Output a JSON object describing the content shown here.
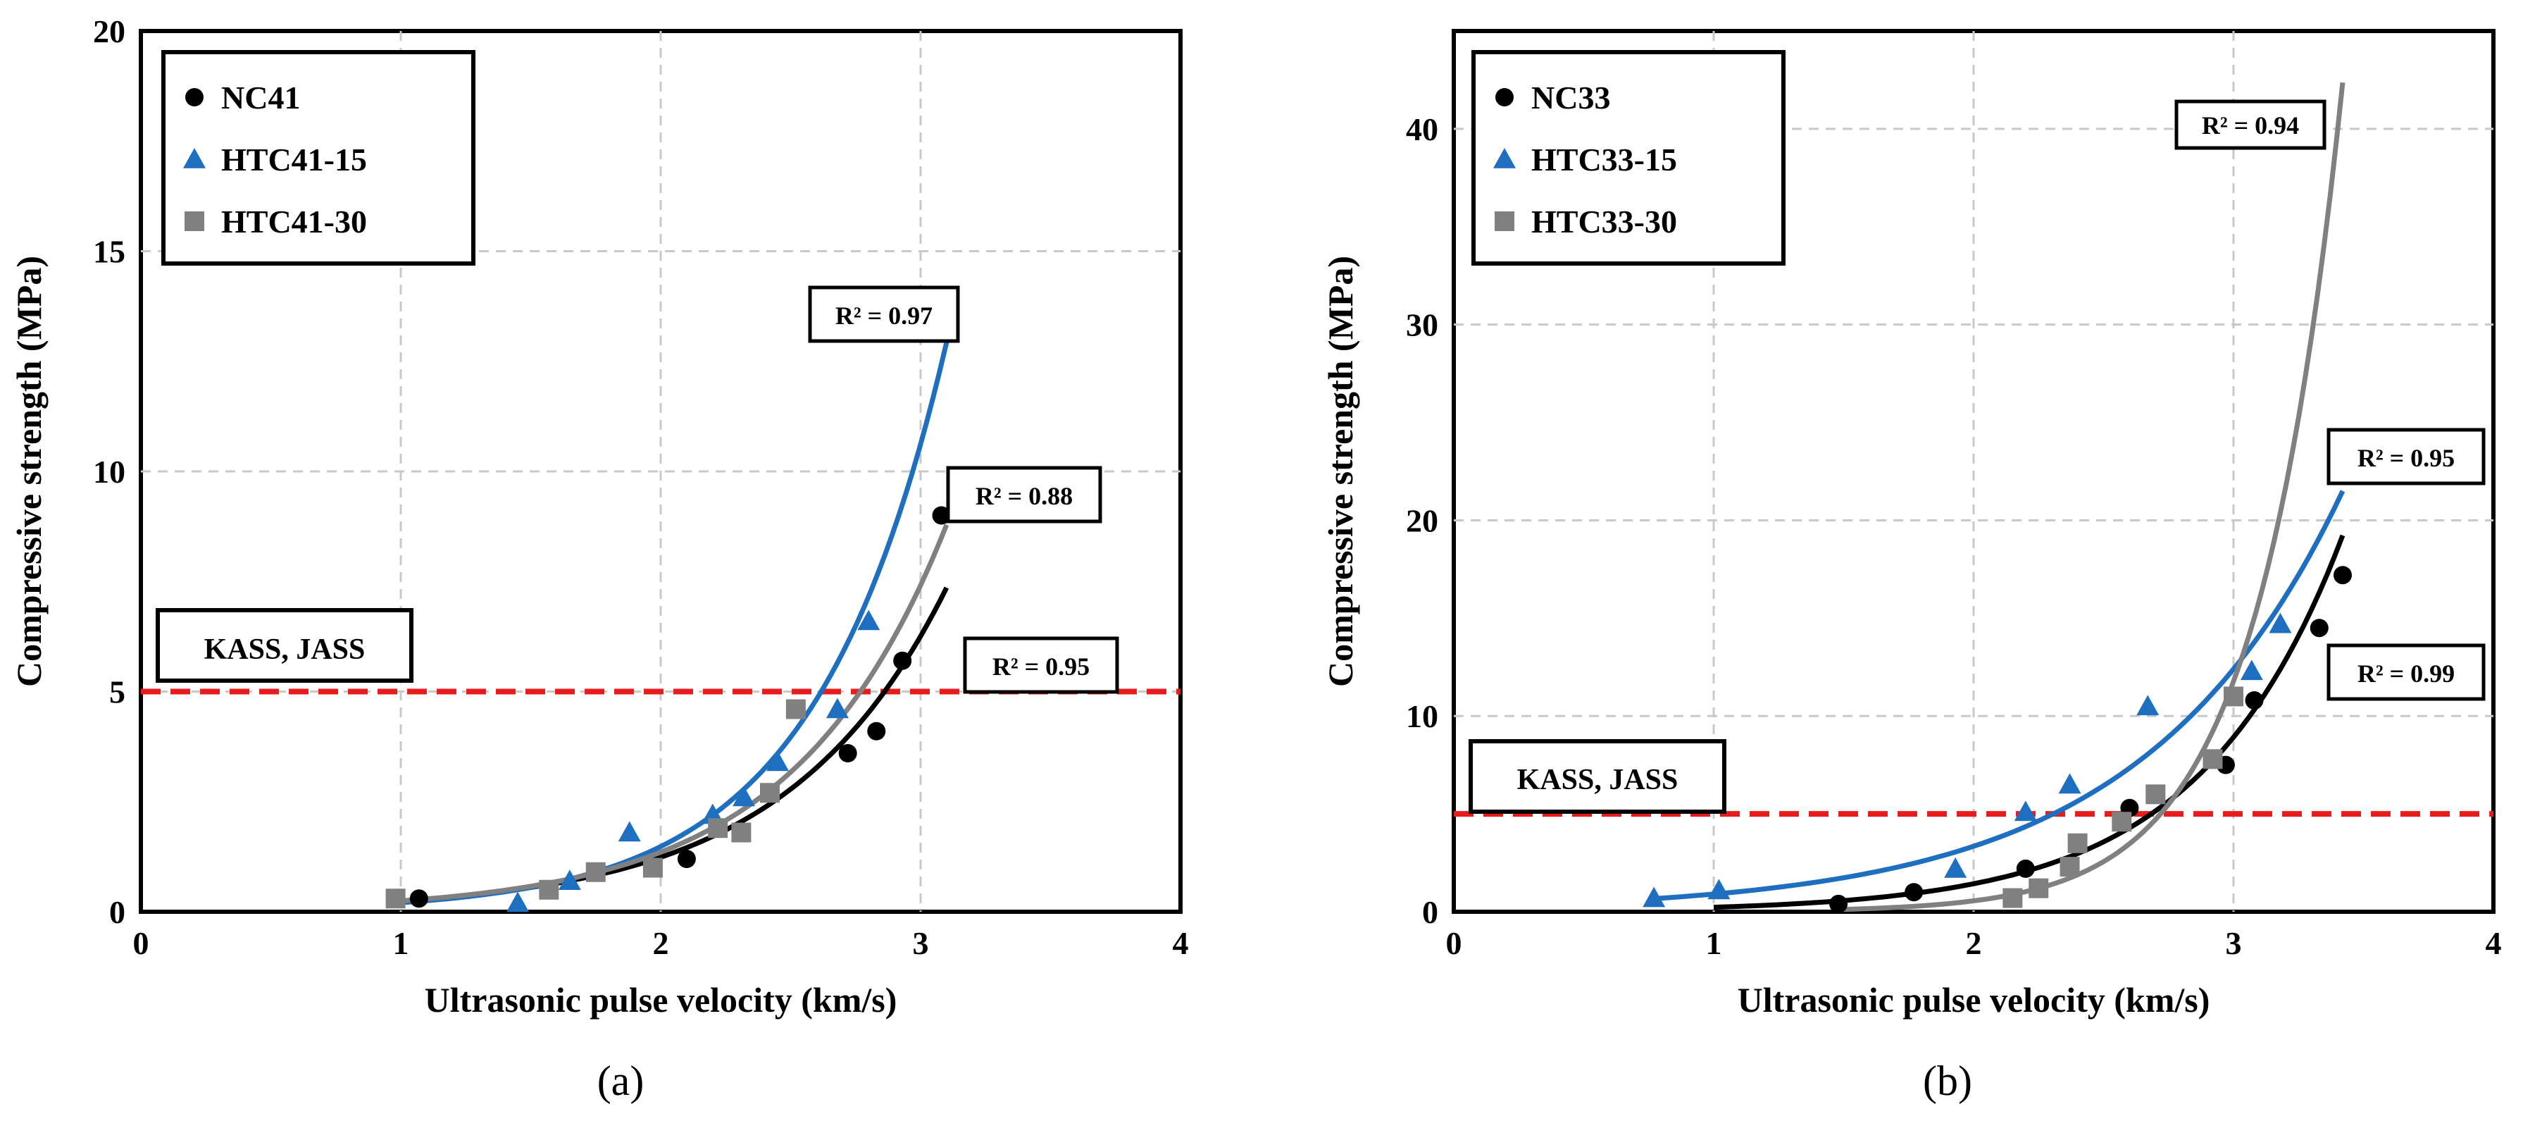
{
  "chart_data": [
    {
      "panel_label": "(a)",
      "type": "scatter",
      "xlabel": "Ultrasonic pulse velocity (km/s)",
      "ylabel": "Compressive strength (MPa)",
      "xlim": [
        0,
        4
      ],
      "ylim": [
        0,
        20
      ],
      "xticks": [
        "0",
        "1",
        "2",
        "3",
        "4"
      ],
      "yticks": [
        "0",
        "5",
        "10",
        "15",
        "20"
      ],
      "x_tick_values": [
        0,
        1,
        2,
        3,
        4
      ],
      "y_tick_values": [
        0,
        5,
        10,
        15,
        20
      ],
      "grid": true,
      "legend_position": "top-left",
      "series": [
        {
          "name": "NC41",
          "marker": "circle",
          "color": "#000000",
          "points": [
            [
              1.07,
              0.3
            ],
            [
              2.1,
              1.2
            ],
            [
              2.72,
              3.6
            ],
            [
              2.83,
              4.1
            ],
            [
              2.93,
              5.7
            ],
            [
              3.08,
              9.0
            ]
          ],
          "trend": {
            "a": 0.0485,
            "b": 1.62,
            "x_range": [
              1.0,
              3.1
            ]
          },
          "r2_label": "R² = 0.95"
        },
        {
          "name": "HTC41-15",
          "marker": "triangle",
          "color": "#1f6fc1",
          "points": [
            [
              1.45,
              0.2
            ],
            [
              1.65,
              0.7
            ],
            [
              1.88,
              1.8
            ],
            [
              2.2,
              2.2
            ],
            [
              2.32,
              2.6
            ],
            [
              2.45,
              3.4
            ],
            [
              2.68,
              4.6
            ],
            [
              2.8,
              6.6
            ]
          ],
          "trend": {
            "a": 0.0288,
            "b": 1.97,
            "x_range": [
              1.0,
              3.1
            ]
          },
          "r2_label": "R² = 0.97"
        },
        {
          "name": "HTC41-30",
          "marker": "square",
          "color": "#808080",
          "points": [
            [
              0.98,
              0.3
            ],
            [
              1.57,
              0.5
            ],
            [
              1.75,
              0.9
            ],
            [
              1.97,
              1.0
            ],
            [
              2.22,
              1.9
            ],
            [
              2.31,
              1.8
            ],
            [
              2.42,
              2.7
            ],
            [
              2.52,
              4.6
            ]
          ],
          "trend": {
            "a": 0.0452,
            "b": 1.7,
            "x_range": [
              1.0,
              3.1
            ]
          },
          "r2_label": "R² = 0.88"
        }
      ],
      "reference_line": {
        "y": 5,
        "label": "KASS, JASS",
        "color": "#e81c1c"
      }
    },
    {
      "panel_label": "(b)",
      "type": "scatter",
      "xlabel": "Ultrasonic pulse velocity (km/s)",
      "ylabel": "Compressive strength (MPa)",
      "xlim": [
        0,
        4
      ],
      "ylim": [
        0,
        45
      ],
      "xticks": [
        "0",
        "1",
        "2",
        "3",
        "4"
      ],
      "yticks": [
        "0",
        "10",
        "20",
        "30",
        "40"
      ],
      "x_tick_values": [
        0,
        1,
        2,
        3,
        4
      ],
      "y_tick_values": [
        0,
        10,
        20,
        30,
        40
      ],
      "grid": true,
      "legend_position": "top-left",
      "series": [
        {
          "name": "NC33",
          "marker": "circle",
          "color": "#000000",
          "points": [
            [
              1.48,
              0.4
            ],
            [
              1.77,
              1.0
            ],
            [
              2.2,
              2.2
            ],
            [
              2.6,
              5.3
            ],
            [
              2.97,
              7.5
            ],
            [
              3.08,
              10.8
            ],
            [
              3.33,
              14.5
            ],
            [
              3.42,
              17.2
            ]
          ],
          "trend": {
            "a": 0.0368,
            "b": 1.83,
            "x_range": [
              1.0,
              3.42
            ]
          },
          "r2_label": "R² = 0.99"
        },
        {
          "name": "HTC33-15",
          "marker": "triangle",
          "color": "#1f6fc1",
          "points": [
            [
              0.77,
              0.7
            ],
            [
              1.02,
              1.1
            ],
            [
              1.93,
              2.2
            ],
            [
              2.2,
              5.1
            ],
            [
              2.37,
              6.5
            ],
            [
              2.67,
              10.5
            ],
            [
              3.07,
              12.3
            ],
            [
              3.18,
              14.7
            ]
          ],
          "trend": {
            "a": 0.2436,
            "b": 1.31,
            "x_range": [
              0.77,
              3.42
            ]
          },
          "r2_label": "R² = 0.95"
        },
        {
          "name": "HTC33-30",
          "marker": "square",
          "color": "#808080",
          "points": [
            [
              2.15,
              0.7
            ],
            [
              2.25,
              1.2
            ],
            [
              2.37,
              2.3
            ],
            [
              2.4,
              3.5
            ],
            [
              2.57,
              4.6
            ],
            [
              2.7,
              6.0
            ],
            [
              2.92,
              7.8
            ],
            [
              3.0,
              11.0
            ]
          ],
          "trend": {
            "a": 0.00125,
            "b": 3.05,
            "x_range": [
              1.5,
              3.42
            ]
          },
          "r2_label": "R² = 0.94"
        }
      ],
      "reference_line": {
        "y": 5,
        "label": "KASS, JASS",
        "color": "#e81c1c"
      }
    }
  ]
}
